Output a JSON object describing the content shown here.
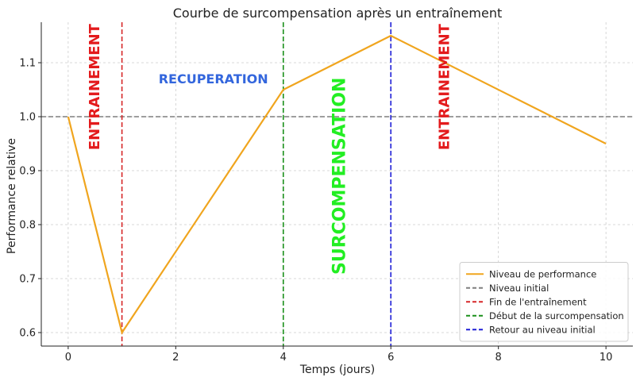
{
  "chart_data": {
    "type": "line",
    "title": "Courbe de surcompensation après un entraînement",
    "xlabel": "Temps (jours)",
    "ylabel": "Performance relative",
    "xlim": [
      -0.5,
      10.5
    ],
    "ylim": [
      0.575,
      1.175
    ],
    "xticks": [
      0,
      2,
      4,
      6,
      8,
      10
    ],
    "yticks": [
      0.6,
      0.7,
      0.8,
      0.9,
      1.0,
      1.1
    ],
    "xtick_labels": [
      "0",
      "2",
      "4",
      "6",
      "8",
      "10"
    ],
    "ytick_labels": [
      "0.6",
      "0.7",
      "0.8",
      "0.9",
      "1.0",
      "1.1"
    ],
    "grid": true,
    "legend_position": "bottom-right",
    "series": [
      {
        "name": "Niveau de performance",
        "color": "#f0a51e",
        "style": "solid",
        "x": [
          0,
          1,
          4,
          6,
          10
        ],
        "y": [
          1.0,
          0.6,
          1.05,
          1.15,
          0.95
        ]
      }
    ],
    "hlines": [
      {
        "name": "Niveau initial",
        "y": 1.0,
        "color": "#7f7f7f",
        "style": "dashed"
      }
    ],
    "vlines": [
      {
        "name": "Fin de l'entraînement",
        "x": 1,
        "color": "#d62728",
        "style": "dashed"
      },
      {
        "name": "Début de la surcompensation",
        "x": 4,
        "color": "#1a8f1a",
        "style": "dashed"
      },
      {
        "name": "Retour au niveau initial",
        "x": 6,
        "color": "#1f1fd6",
        "style": "dashed"
      }
    ],
    "annotations": [
      {
        "text": "ENTRAINEMENT",
        "x": 0.5,
        "y": 1.055,
        "rotation": -90,
        "color": "#e31a1c"
      },
      {
        "text": "RECUPERATION",
        "x": 2.7,
        "y": 1.07,
        "rotation": 0,
        "color": "#3366dd"
      },
      {
        "text": "SURCOMPENSATION",
        "x": 5.05,
        "y": 0.89,
        "rotation": -90,
        "color": "#22ee22"
      },
      {
        "text": "ENTRAINEMENT",
        "x": 7.0,
        "y": 1.055,
        "rotation": -90,
        "color": "#e31a1c"
      }
    ]
  }
}
